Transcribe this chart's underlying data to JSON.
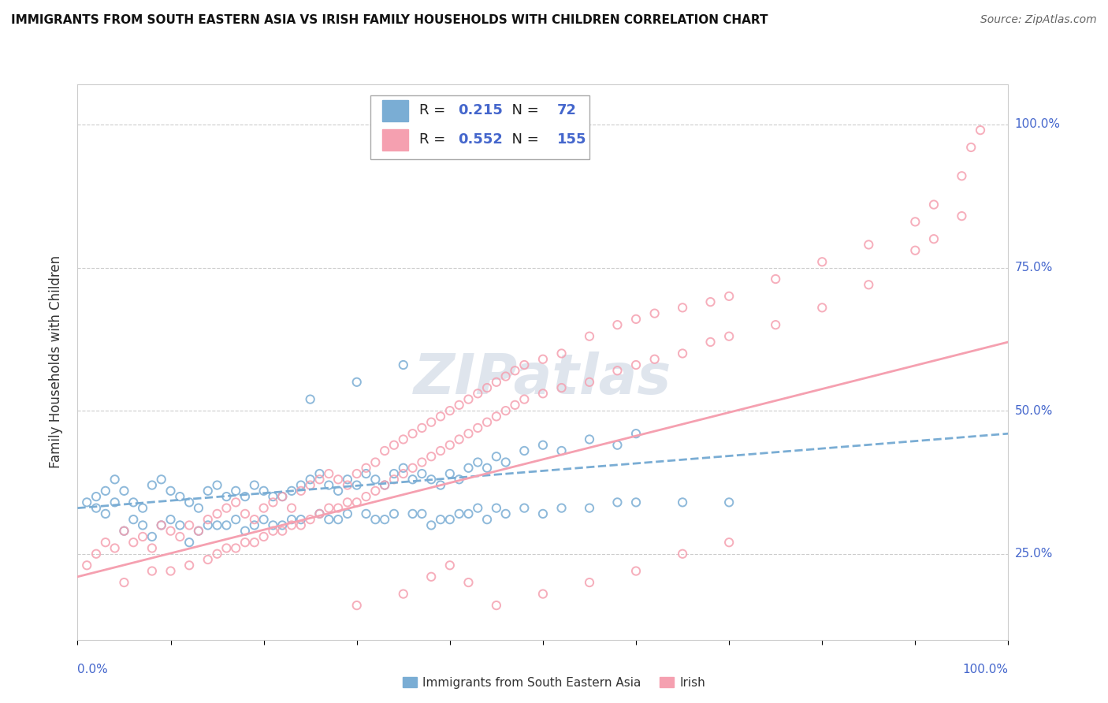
{
  "title": "IMMIGRANTS FROM SOUTH EASTERN ASIA VS IRISH FAMILY HOUSEHOLDS WITH CHILDREN CORRELATION CHART",
  "source": "Source: ZipAtlas.com",
  "ylabel": "Family Households with Children",
  "ytick_labels": [
    "25.0%",
    "50.0%",
    "75.0%",
    "100.0%"
  ],
  "ytick_vals": [
    25,
    50,
    75,
    100
  ],
  "legend_label1": "Immigrants from South Eastern Asia",
  "legend_label2": "Irish",
  "R1": "0.215",
  "N1": "72",
  "R2": "0.552",
  "N2": "155",
  "color_blue": "#7aadd4",
  "color_pink": "#f5a0b0",
  "color_blue_text": "#4466CC",
  "watermark_color": "#c0ccdd",
  "blue_scatter": [
    [
      1,
      34
    ],
    [
      2,
      35
    ],
    [
      2,
      33
    ],
    [
      3,
      36
    ],
    [
      3,
      32
    ],
    [
      4,
      38
    ],
    [
      4,
      34
    ],
    [
      5,
      36
    ],
    [
      5,
      29
    ],
    [
      6,
      34
    ],
    [
      6,
      31
    ],
    [
      7,
      33
    ],
    [
      7,
      30
    ],
    [
      8,
      37
    ],
    [
      8,
      28
    ],
    [
      9,
      38
    ],
    [
      9,
      30
    ],
    [
      10,
      36
    ],
    [
      10,
      31
    ],
    [
      11,
      35
    ],
    [
      11,
      30
    ],
    [
      12,
      34
    ],
    [
      12,
      27
    ],
    [
      13,
      33
    ],
    [
      13,
      29
    ],
    [
      14,
      36
    ],
    [
      14,
      30
    ],
    [
      15,
      37
    ],
    [
      15,
      30
    ],
    [
      16,
      35
    ],
    [
      16,
      30
    ],
    [
      17,
      36
    ],
    [
      17,
      31
    ],
    [
      18,
      35
    ],
    [
      18,
      29
    ],
    [
      19,
      37
    ],
    [
      19,
      30
    ],
    [
      20,
      36
    ],
    [
      20,
      31
    ],
    [
      21,
      35
    ],
    [
      21,
      30
    ],
    [
      22,
      35
    ],
    [
      22,
      30
    ],
    [
      23,
      36
    ],
    [
      23,
      31
    ],
    [
      24,
      37
    ],
    [
      24,
      31
    ],
    [
      25,
      38
    ],
    [
      25,
      52
    ],
    [
      26,
      39
    ],
    [
      26,
      32
    ],
    [
      27,
      37
    ],
    [
      27,
      31
    ],
    [
      28,
      36
    ],
    [
      28,
      31
    ],
    [
      29,
      38
    ],
    [
      29,
      32
    ],
    [
      30,
      37
    ],
    [
      30,
      55
    ],
    [
      31,
      39
    ],
    [
      31,
      32
    ],
    [
      32,
      38
    ],
    [
      32,
      31
    ],
    [
      33,
      37
    ],
    [
      33,
      31
    ],
    [
      34,
      39
    ],
    [
      34,
      32
    ],
    [
      35,
      40
    ],
    [
      35,
      58
    ],
    [
      36,
      38
    ],
    [
      36,
      32
    ],
    [
      37,
      39
    ],
    [
      37,
      32
    ],
    [
      38,
      38
    ],
    [
      38,
      30
    ],
    [
      39,
      37
    ],
    [
      39,
      31
    ],
    [
      40,
      39
    ],
    [
      40,
      31
    ],
    [
      41,
      38
    ],
    [
      41,
      32
    ],
    [
      42,
      40
    ],
    [
      42,
      32
    ],
    [
      43,
      41
    ],
    [
      43,
      33
    ],
    [
      44,
      40
    ],
    [
      44,
      31
    ],
    [
      45,
      42
    ],
    [
      45,
      33
    ],
    [
      46,
      41
    ],
    [
      46,
      32
    ],
    [
      48,
      43
    ],
    [
      48,
      33
    ],
    [
      50,
      44
    ],
    [
      50,
      32
    ],
    [
      52,
      43
    ],
    [
      52,
      33
    ],
    [
      55,
      45
    ],
    [
      55,
      33
    ],
    [
      58,
      44
    ],
    [
      58,
      34
    ],
    [
      60,
      46
    ],
    [
      60,
      34
    ],
    [
      65,
      34
    ],
    [
      70,
      34
    ]
  ],
  "pink_scatter": [
    [
      1,
      23
    ],
    [
      2,
      25
    ],
    [
      3,
      27
    ],
    [
      4,
      26
    ],
    [
      5,
      29
    ],
    [
      5,
      20
    ],
    [
      6,
      27
    ],
    [
      7,
      28
    ],
    [
      8,
      26
    ],
    [
      8,
      22
    ],
    [
      9,
      30
    ],
    [
      10,
      29
    ],
    [
      10,
      22
    ],
    [
      11,
      28
    ],
    [
      12,
      30
    ],
    [
      12,
      23
    ],
    [
      13,
      29
    ],
    [
      14,
      31
    ],
    [
      14,
      24
    ],
    [
      15,
      32
    ],
    [
      15,
      25
    ],
    [
      16,
      33
    ],
    [
      16,
      26
    ],
    [
      17,
      34
    ],
    [
      17,
      26
    ],
    [
      18,
      32
    ],
    [
      18,
      27
    ],
    [
      19,
      31
    ],
    [
      19,
      27
    ],
    [
      20,
      33
    ],
    [
      20,
      28
    ],
    [
      21,
      34
    ],
    [
      21,
      29
    ],
    [
      22,
      35
    ],
    [
      22,
      29
    ],
    [
      23,
      33
    ],
    [
      23,
      30
    ],
    [
      24,
      36
    ],
    [
      24,
      30
    ],
    [
      25,
      37
    ],
    [
      25,
      31
    ],
    [
      26,
      38
    ],
    [
      26,
      32
    ],
    [
      27,
      39
    ],
    [
      27,
      33
    ],
    [
      28,
      38
    ],
    [
      28,
      33
    ],
    [
      29,
      37
    ],
    [
      29,
      34
    ],
    [
      30,
      39
    ],
    [
      30,
      34
    ],
    [
      31,
      40
    ],
    [
      31,
      35
    ],
    [
      32,
      41
    ],
    [
      32,
      36
    ],
    [
      33,
      43
    ],
    [
      33,
      37
    ],
    [
      34,
      44
    ],
    [
      34,
      38
    ],
    [
      35,
      45
    ],
    [
      35,
      39
    ],
    [
      36,
      46
    ],
    [
      36,
      40
    ],
    [
      37,
      47
    ],
    [
      37,
      41
    ],
    [
      38,
      48
    ],
    [
      38,
      42
    ],
    [
      39,
      49
    ],
    [
      39,
      43
    ],
    [
      40,
      50
    ],
    [
      40,
      44
    ],
    [
      41,
      51
    ],
    [
      41,
      45
    ],
    [
      42,
      52
    ],
    [
      42,
      46
    ],
    [
      43,
      53
    ],
    [
      43,
      47
    ],
    [
      44,
      54
    ],
    [
      44,
      48
    ],
    [
      45,
      55
    ],
    [
      45,
      49
    ],
    [
      46,
      56
    ],
    [
      46,
      50
    ],
    [
      47,
      57
    ],
    [
      47,
      51
    ],
    [
      48,
      58
    ],
    [
      48,
      52
    ],
    [
      50,
      59
    ],
    [
      50,
      53
    ],
    [
      52,
      60
    ],
    [
      52,
      54
    ],
    [
      55,
      63
    ],
    [
      55,
      55
    ],
    [
      58,
      65
    ],
    [
      58,
      57
    ],
    [
      60,
      66
    ],
    [
      60,
      58
    ],
    [
      62,
      67
    ],
    [
      62,
      59
    ],
    [
      65,
      68
    ],
    [
      65,
      60
    ],
    [
      68,
      69
    ],
    [
      68,
      62
    ],
    [
      70,
      70
    ],
    [
      70,
      63
    ],
    [
      75,
      73
    ],
    [
      75,
      65
    ],
    [
      80,
      76
    ],
    [
      80,
      68
    ],
    [
      85,
      79
    ],
    [
      85,
      72
    ],
    [
      90,
      83
    ],
    [
      90,
      78
    ],
    [
      92,
      86
    ],
    [
      92,
      80
    ],
    [
      95,
      91
    ],
    [
      95,
      84
    ],
    [
      96,
      96
    ],
    [
      97,
      99
    ],
    [
      30,
      16
    ],
    [
      35,
      18
    ],
    [
      38,
      21
    ],
    [
      40,
      23
    ],
    [
      42,
      20
    ],
    [
      45,
      16
    ],
    [
      50,
      18
    ],
    [
      55,
      20
    ],
    [
      60,
      22
    ],
    [
      65,
      25
    ],
    [
      70,
      27
    ]
  ],
  "xlim": [
    0,
    100
  ],
  "ylim": [
    10,
    107
  ],
  "blue_line_x": [
    0,
    100
  ],
  "blue_line_y": [
    33,
    46
  ],
  "pink_line_x": [
    0,
    100
  ],
  "pink_line_y": [
    21,
    62
  ]
}
